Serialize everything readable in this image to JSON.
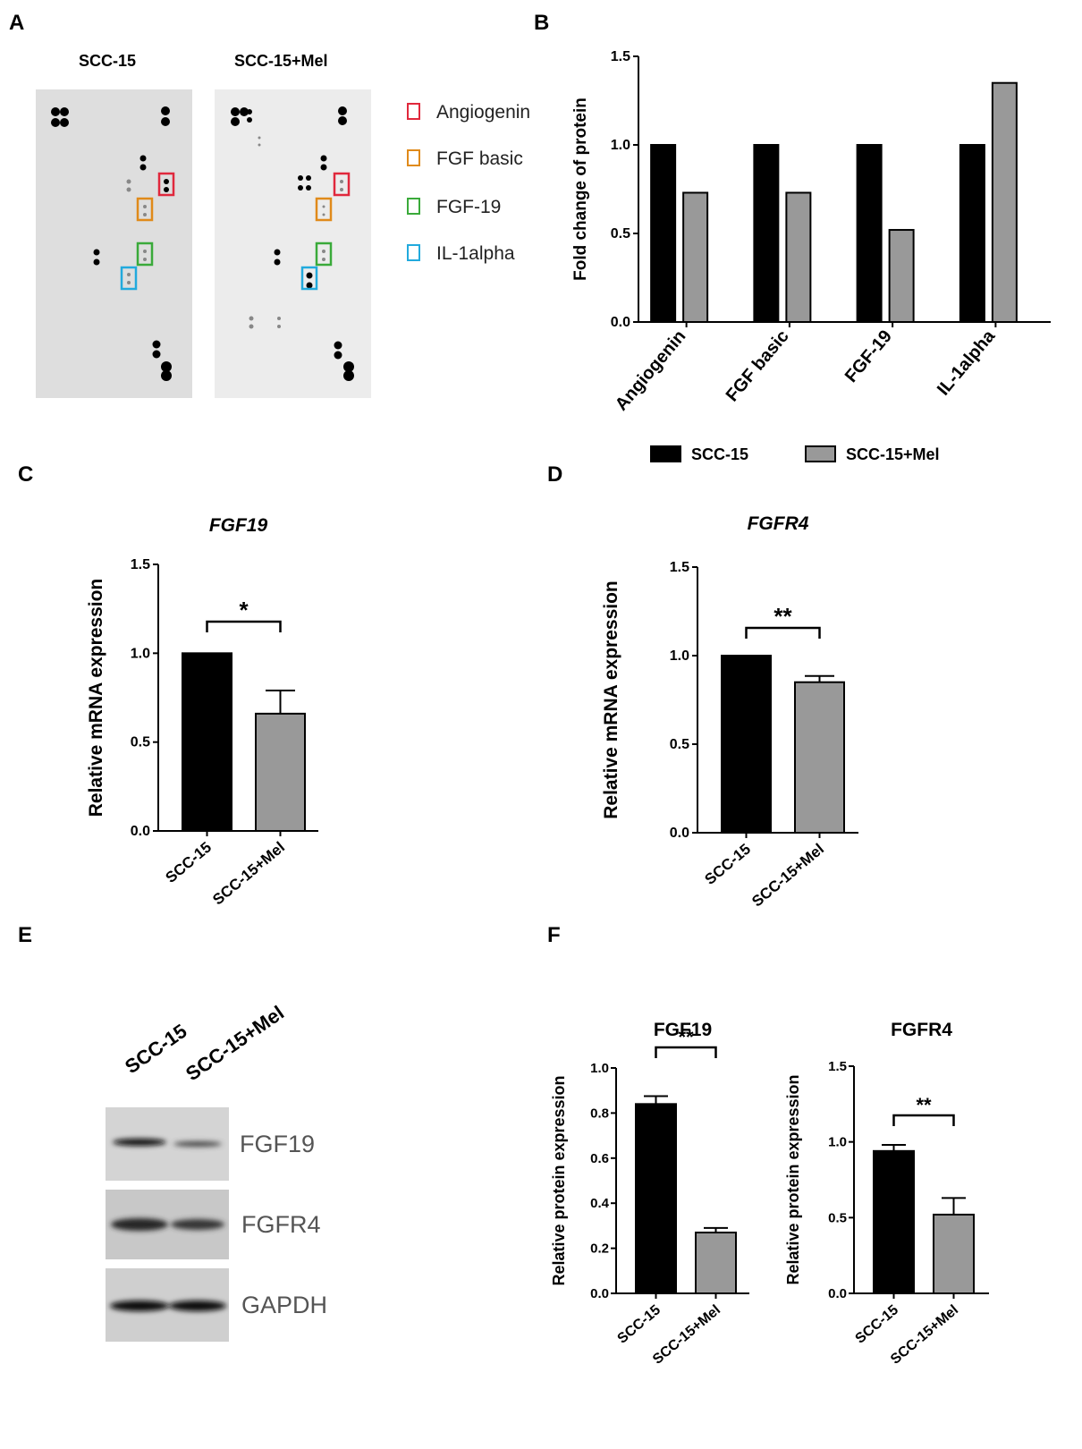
{
  "panels": {
    "A": "A",
    "B": "B",
    "C": "C",
    "D": "D",
    "E": "E",
    "F": "F"
  },
  "array": {
    "labels": [
      "SCC-15",
      "SCC-15+Mel"
    ],
    "legend": [
      {
        "label": "Angiogenin",
        "color": "#e0283c"
      },
      {
        "label": "FGF basic",
        "color": "#e08a1a"
      },
      {
        "label": "FGF-19",
        "color": "#3aaa3a"
      },
      {
        "label": "IL-1alpha",
        "color": "#22aadd"
      }
    ]
  },
  "blot": {
    "lanes": [
      "SCC-15",
      "SCC-15+Mel"
    ],
    "bands": [
      "FGF19",
      "FGFR4",
      "GAPDH"
    ]
  },
  "chart_data": [
    {
      "id": "B",
      "type": "bar",
      "title": "",
      "ylabel": "Fold change of protein",
      "xlabel": "",
      "categories": [
        "Angiogenin",
        "FGF basic",
        "FGF-19",
        "IL-1alpha"
      ],
      "series": [
        {
          "name": "SCC-15",
          "color": "#000000",
          "values": [
            1.0,
            1.0,
            1.0,
            1.0
          ]
        },
        {
          "name": "SCC-15+Mel",
          "color": "#999999",
          "values": [
            0.73,
            0.73,
            0.52,
            1.35
          ]
        }
      ],
      "ylim": [
        0,
        1.5
      ],
      "yticks": [
        "0.0",
        "0.5",
        "1.0",
        "1.5"
      ],
      "legend": "bottom"
    },
    {
      "id": "C",
      "type": "bar",
      "title": "FGF19",
      "title_italic": true,
      "ylabel": "Relative mRNA expression",
      "categories": [
        "SCC-15",
        "SCC-15+Mel"
      ],
      "values": [
        1.0,
        0.66
      ],
      "errors": [
        0,
        0.13
      ],
      "colors": [
        "#000000",
        "#999999"
      ],
      "ylim": [
        0,
        1.5
      ],
      "yticks": [
        "0.0",
        "0.5",
        "1.0",
        "1.5"
      ],
      "significance": "*"
    },
    {
      "id": "D",
      "type": "bar",
      "title": "FGFR4",
      "title_italic": true,
      "ylabel": "Relative mRNA expression",
      "categories": [
        "SCC-15",
        "SCC-15+Mel"
      ],
      "values": [
        1.0,
        0.85
      ],
      "errors": [
        0,
        0.035
      ],
      "colors": [
        "#000000",
        "#999999"
      ],
      "ylim": [
        0,
        1.5
      ],
      "yticks": [
        "0.0",
        "0.5",
        "1.0",
        "1.5"
      ],
      "significance": "**"
    },
    {
      "id": "F1",
      "type": "bar",
      "title": "FGF19",
      "title_italic": false,
      "ylabel": "Relative protein expression",
      "categories": [
        "SCC-15",
        "SCC-15+Mel"
      ],
      "values": [
        0.84,
        0.27
      ],
      "errors": [
        0.035,
        0.02
      ],
      "colors": [
        "#000000",
        "#999999"
      ],
      "ylim": [
        0,
        1.0
      ],
      "yticks": [
        "0.0",
        "0.2",
        "0.4",
        "0.6",
        "0.8",
        "1.0"
      ],
      "significance": "**"
    },
    {
      "id": "F2",
      "type": "bar",
      "title": "FGFR4",
      "title_italic": false,
      "ylabel": "Relative protein expression",
      "categories": [
        "SCC-15",
        "SCC-15+Mel"
      ],
      "values": [
        0.94,
        0.52
      ],
      "errors": [
        0.04,
        0.11
      ],
      "colors": [
        "#000000",
        "#999999"
      ],
      "ylim": [
        0,
        1.5
      ],
      "yticks": [
        "0.0",
        "0.5",
        "1.0",
        "1.5"
      ],
      "significance": "**"
    }
  ]
}
